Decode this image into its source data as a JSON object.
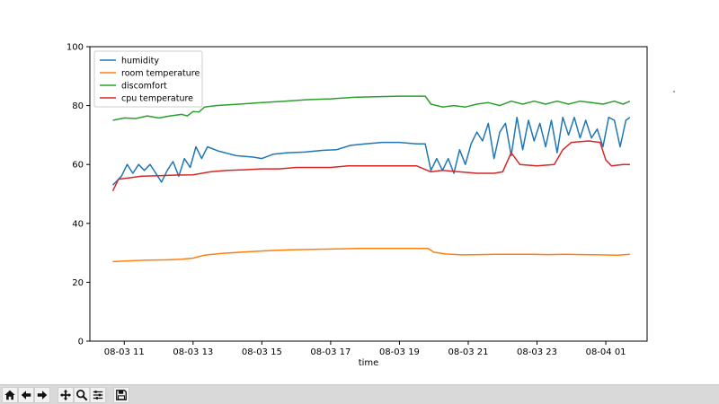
{
  "chart_data": {
    "type": "line",
    "xlabel": "time",
    "ylabel": "",
    "title": "",
    "xlim": [
      "2021-08-03 10:00",
      "2021-08-04 02:12"
    ],
    "ylim": [
      0,
      100
    ],
    "x_ticks": [
      {
        "label": "08-03 11",
        "time": "2021-08-03 11:00"
      },
      {
        "label": "08-03 13",
        "time": "2021-08-03 13:00"
      },
      {
        "label": "08-03 15",
        "time": "2021-08-03 15:00"
      },
      {
        "label": "08-03 17",
        "time": "2021-08-03 17:00"
      },
      {
        "label": "08-03 19",
        "time": "2021-08-03 19:00"
      },
      {
        "label": "08-03 21",
        "time": "2021-08-03 21:00"
      },
      {
        "label": "08-03 23",
        "time": "2021-08-03 23:00"
      },
      {
        "label": "08-04 01",
        "time": "2021-08-04 01:00"
      }
    ],
    "y_ticks": [
      0,
      20,
      40,
      60,
      80,
      100
    ],
    "legend_position": "upper-left",
    "series": [
      {
        "name": "humidity",
        "color": "#1f77b4",
        "points": [
          [
            "2021-08-03 10:40",
            53
          ],
          [
            "2021-08-03 10:55",
            56
          ],
          [
            "2021-08-03 11:05",
            60
          ],
          [
            "2021-08-03 11:15",
            57
          ],
          [
            "2021-08-03 11:25",
            60
          ],
          [
            "2021-08-03 11:35",
            58
          ],
          [
            "2021-08-03 11:45",
            60
          ],
          [
            "2021-08-03 11:55",
            57
          ],
          [
            "2021-08-03 12:05",
            54
          ],
          [
            "2021-08-03 12:15",
            58
          ],
          [
            "2021-08-03 12:25",
            61
          ],
          [
            "2021-08-03 12:35",
            56
          ],
          [
            "2021-08-03 12:45",
            62
          ],
          [
            "2021-08-03 12:55",
            59
          ],
          [
            "2021-08-03 13:05",
            66
          ],
          [
            "2021-08-03 13:15",
            62
          ],
          [
            "2021-08-03 13:25",
            66
          ],
          [
            "2021-08-03 13:45",
            64.5
          ],
          [
            "2021-08-03 14:15",
            63
          ],
          [
            "2021-08-03 14:45",
            62.5
          ],
          [
            "2021-08-03 15:00",
            62
          ],
          [
            "2021-08-03 15:20",
            63.5
          ],
          [
            "2021-08-03 15:45",
            64
          ],
          [
            "2021-08-03 16:15",
            64.2
          ],
          [
            "2021-08-03 16:45",
            64.8
          ],
          [
            "2021-08-03 17:10",
            65
          ],
          [
            "2021-08-03 17:35",
            66.5
          ],
          [
            "2021-08-03 18:00",
            67
          ],
          [
            "2021-08-03 18:30",
            67.5
          ],
          [
            "2021-08-03 19:00",
            67.5
          ],
          [
            "2021-08-03 19:30",
            67
          ],
          [
            "2021-08-03 19:45",
            67
          ],
          [
            "2021-08-03 19:55",
            58
          ],
          [
            "2021-08-03 20:05",
            62
          ],
          [
            "2021-08-03 20:15",
            58
          ],
          [
            "2021-08-03 20:25",
            62
          ],
          [
            "2021-08-03 20:35",
            57
          ],
          [
            "2021-08-03 20:45",
            65
          ],
          [
            "2021-08-03 20:55",
            60
          ],
          [
            "2021-08-03 21:05",
            67
          ],
          [
            "2021-08-03 21:15",
            71
          ],
          [
            "2021-08-03 21:25",
            68
          ],
          [
            "2021-08-03 21:35",
            74
          ],
          [
            "2021-08-03 21:45",
            62
          ],
          [
            "2021-08-03 21:55",
            71
          ],
          [
            "2021-08-03 22:05",
            74
          ],
          [
            "2021-08-03 22:15",
            63
          ],
          [
            "2021-08-03 22:25",
            76
          ],
          [
            "2021-08-03 22:35",
            65
          ],
          [
            "2021-08-03 22:45",
            75
          ],
          [
            "2021-08-03 22:55",
            68
          ],
          [
            "2021-08-03 23:05",
            74
          ],
          [
            "2021-08-03 23:15",
            66
          ],
          [
            "2021-08-03 23:25",
            75
          ],
          [
            "2021-08-03 23:35",
            64
          ],
          [
            "2021-08-03 23:45",
            76
          ],
          [
            "2021-08-03 23:55",
            70
          ],
          [
            "2021-08-04 00:05",
            76
          ],
          [
            "2021-08-04 00:15",
            69
          ],
          [
            "2021-08-04 00:25",
            75
          ],
          [
            "2021-08-04 00:35",
            69
          ],
          [
            "2021-08-04 00:45",
            72
          ],
          [
            "2021-08-04 00:55",
            66
          ],
          [
            "2021-08-04 01:05",
            76
          ],
          [
            "2021-08-04 01:15",
            75
          ],
          [
            "2021-08-04 01:25",
            66
          ],
          [
            "2021-08-04 01:35",
            75
          ],
          [
            "2021-08-04 01:42",
            76
          ]
        ]
      },
      {
        "name": "room temperature",
        "color": "#ff7f0e",
        "points": [
          [
            "2021-08-03 10:40",
            27
          ],
          [
            "2021-08-03 11:10",
            27.3
          ],
          [
            "2021-08-03 11:40",
            27.5
          ],
          [
            "2021-08-03 12:10",
            27.6
          ],
          [
            "2021-08-03 12:40",
            27.8
          ],
          [
            "2021-08-03 13:00",
            28.2
          ],
          [
            "2021-08-03 13:20",
            29.2
          ],
          [
            "2021-08-03 13:50",
            29.8
          ],
          [
            "2021-08-03 14:30",
            30.3
          ],
          [
            "2021-08-03 15:10",
            30.7
          ],
          [
            "2021-08-03 15:50",
            31
          ],
          [
            "2021-08-03 16:30",
            31.2
          ],
          [
            "2021-08-03 17:10",
            31.3
          ],
          [
            "2021-08-03 17:50",
            31.5
          ],
          [
            "2021-08-03 18:30",
            31.5
          ],
          [
            "2021-08-03 19:10",
            31.5
          ],
          [
            "2021-08-03 19:50",
            31.5
          ],
          [
            "2021-08-03 20:00",
            30.2
          ],
          [
            "2021-08-03 20:20",
            29.6
          ],
          [
            "2021-08-03 20:50",
            29.3
          ],
          [
            "2021-08-03 21:20",
            29.4
          ],
          [
            "2021-08-03 21:50",
            29.5
          ],
          [
            "2021-08-03 22:20",
            29.5
          ],
          [
            "2021-08-03 22:50",
            29.5
          ],
          [
            "2021-08-03 23:20",
            29.4
          ],
          [
            "2021-08-03 23:50",
            29.5
          ],
          [
            "2021-08-04 00:20",
            29.4
          ],
          [
            "2021-08-04 00:50",
            29.3
          ],
          [
            "2021-08-04 01:20",
            29.2
          ],
          [
            "2021-08-04 01:42",
            29.5
          ]
        ]
      },
      {
        "name": "discomfort",
        "color": "#2ca02c",
        "points": [
          [
            "2021-08-03 10:40",
            75
          ],
          [
            "2021-08-03 11:00",
            75.8
          ],
          [
            "2021-08-03 11:20",
            75.6
          ],
          [
            "2021-08-03 11:40",
            76.5
          ],
          [
            "2021-08-03 12:00",
            75.8
          ],
          [
            "2021-08-03 12:20",
            76.5
          ],
          [
            "2021-08-03 12:40",
            77
          ],
          [
            "2021-08-03 12:50",
            76.5
          ],
          [
            "2021-08-03 13:00",
            78
          ],
          [
            "2021-08-03 13:10",
            77.8
          ],
          [
            "2021-08-03 13:20",
            79.5
          ],
          [
            "2021-08-03 13:40",
            80
          ],
          [
            "2021-08-03 14:20",
            80.5
          ],
          [
            "2021-08-03 15:00",
            81
          ],
          [
            "2021-08-03 15:40",
            81.5
          ],
          [
            "2021-08-03 16:20",
            82
          ],
          [
            "2021-08-03 17:00",
            82.3
          ],
          [
            "2021-08-03 17:40",
            82.8
          ],
          [
            "2021-08-03 18:20",
            83
          ],
          [
            "2021-08-03 19:00",
            83.2
          ],
          [
            "2021-08-03 19:45",
            83.2
          ],
          [
            "2021-08-03 19:55",
            80.5
          ],
          [
            "2021-08-03 20:15",
            79.5
          ],
          [
            "2021-08-03 20:35",
            80
          ],
          [
            "2021-08-03 20:55",
            79.5
          ],
          [
            "2021-08-03 21:15",
            80.5
          ],
          [
            "2021-08-03 21:35",
            81
          ],
          [
            "2021-08-03 21:55",
            80
          ],
          [
            "2021-08-03 22:15",
            81.5
          ],
          [
            "2021-08-03 22:35",
            80.5
          ],
          [
            "2021-08-03 22:55",
            81.5
          ],
          [
            "2021-08-03 23:15",
            80.5
          ],
          [
            "2021-08-03 23:35",
            81.5
          ],
          [
            "2021-08-03 23:55",
            80.5
          ],
          [
            "2021-08-04 00:15",
            81.5
          ],
          [
            "2021-08-04 00:35",
            81
          ],
          [
            "2021-08-04 00:55",
            80.5
          ],
          [
            "2021-08-04 01:15",
            81.5
          ],
          [
            "2021-08-04 01:30",
            80.5
          ],
          [
            "2021-08-04 01:42",
            81.5
          ]
        ]
      },
      {
        "name": "cpu temperature",
        "color": "#d62728",
        "points": [
          [
            "2021-08-03 10:40",
            51
          ],
          [
            "2021-08-03 10:50",
            55
          ],
          [
            "2021-08-03 11:10",
            55.5
          ],
          [
            "2021-08-03 11:30",
            56
          ],
          [
            "2021-08-03 12:00",
            56.2
          ],
          [
            "2021-08-03 12:30",
            56.4
          ],
          [
            "2021-08-03 13:00",
            56.5
          ],
          [
            "2021-08-03 13:30",
            57.5
          ],
          [
            "2021-08-03 14:00",
            58
          ],
          [
            "2021-08-03 14:30",
            58.2
          ],
          [
            "2021-08-03 15:00",
            58.5
          ],
          [
            "2021-08-03 15:30",
            58.5
          ],
          [
            "2021-08-03 16:00",
            59
          ],
          [
            "2021-08-03 16:30",
            59
          ],
          [
            "2021-08-03 17:00",
            59
          ],
          [
            "2021-08-03 17:30",
            59.5
          ],
          [
            "2021-08-03 18:00",
            59.5
          ],
          [
            "2021-08-03 18:30",
            59.5
          ],
          [
            "2021-08-03 19:00",
            59.5
          ],
          [
            "2021-08-03 19:30",
            59.5
          ],
          [
            "2021-08-03 19:55",
            57.5
          ],
          [
            "2021-08-03 20:15",
            58
          ],
          [
            "2021-08-03 20:45",
            57.5
          ],
          [
            "2021-08-03 21:15",
            57
          ],
          [
            "2021-08-03 21:45",
            57
          ],
          [
            "2021-08-03 22:00",
            57.5
          ],
          [
            "2021-08-03 22:15",
            64
          ],
          [
            "2021-08-03 22:30",
            60
          ],
          [
            "2021-08-03 23:00",
            59.5
          ],
          [
            "2021-08-03 23:30",
            60
          ],
          [
            "2021-08-03 23:45",
            65
          ],
          [
            "2021-08-04 00:00",
            67.5
          ],
          [
            "2021-08-04 00:30",
            68
          ],
          [
            "2021-08-04 00:50",
            67.5
          ],
          [
            "2021-08-04 01:00",
            61.5
          ],
          [
            "2021-08-04 01:10",
            59.5
          ],
          [
            "2021-08-04 01:30",
            60
          ],
          [
            "2021-08-04 01:42",
            60
          ]
        ]
      }
    ]
  },
  "toolbar": {
    "buttons": [
      {
        "name": "home-button",
        "icon": "home-icon"
      },
      {
        "name": "back-button",
        "icon": "arrow-left-icon"
      },
      {
        "name": "forward-button",
        "icon": "arrow-right-icon"
      },
      {
        "name": "pan-button",
        "icon": "move-icon"
      },
      {
        "name": "zoom-button",
        "icon": "magnifier-icon"
      },
      {
        "name": "configure-subplots-button",
        "icon": "sliders-icon"
      },
      {
        "name": "save-button",
        "icon": "floppy-disk-icon"
      }
    ]
  }
}
